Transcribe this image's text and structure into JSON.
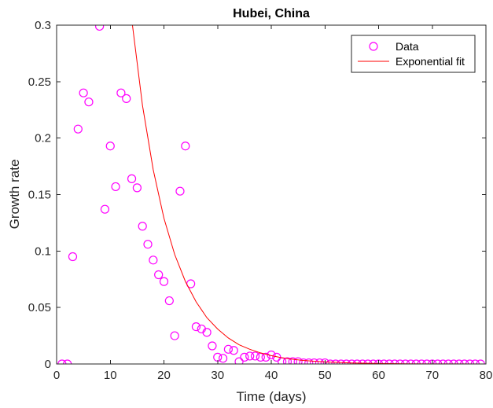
{
  "chart_data": {
    "type": "scatter",
    "title": "Hubei, China",
    "xlabel": "Time (days)",
    "ylabel": "Growth rate",
    "xlim": [
      0,
      80
    ],
    "ylim": [
      0,
      0.3
    ],
    "x_ticks": [
      0,
      10,
      20,
      30,
      40,
      50,
      60,
      70,
      80
    ],
    "x_tick_labels": [
      "0",
      "10",
      "20",
      "30",
      "40",
      "50",
      "60",
      "70",
      "80"
    ],
    "y_ticks": [
      0,
      0.05,
      0.1,
      0.15,
      0.2,
      0.25,
      0.3
    ],
    "y_tick_labels": [
      "0",
      "0.05",
      "0.1",
      "0.15",
      "0.2",
      "0.25",
      "0.3"
    ],
    "grid": false,
    "legend_position": "top-right",
    "series": [
      {
        "name": "Data",
        "kind": "markers",
        "marker": "circle",
        "color": "#ff00ff",
        "x": [
          1,
          2,
          3,
          4,
          5,
          6,
          7,
          8,
          9,
          10,
          11,
          12,
          13,
          14,
          15,
          16,
          17,
          18,
          19,
          20,
          21,
          22,
          23,
          24,
          25,
          26,
          27,
          28,
          29,
          30,
          31,
          32,
          33,
          34,
          35,
          36,
          37,
          38,
          39,
          40,
          41,
          42,
          43,
          44,
          45,
          46,
          47,
          48,
          49,
          50,
          51,
          52,
          53,
          54,
          55,
          56,
          57,
          58,
          59,
          60,
          61,
          62,
          63,
          64,
          65,
          66,
          67,
          68,
          69,
          70,
          71,
          72,
          73,
          74,
          75,
          76,
          77,
          78,
          79
        ],
        "y": [
          0,
          0,
          0.095,
          0.208,
          0.24,
          0.232,
          0.31,
          0.299,
          0.137,
          0.193,
          0.157,
          0.24,
          0.235,
          0.164,
          0.156,
          0.122,
          0.106,
          0.092,
          0.079,
          0.073,
          0.056,
          0.025,
          0.153,
          0.193,
          0.071,
          0.033,
          0.031,
          0.028,
          0.016,
          0.006,
          0.005,
          0.013,
          0.012,
          0.002,
          0.006,
          0.007,
          0.007,
          0.006,
          0.006,
          0.008,
          0.006,
          0.002,
          0.002,
          0.002,
          0.002,
          0.001,
          0.001,
          0.001,
          0.001,
          0.001,
          0,
          0,
          0,
          0,
          0,
          0,
          0,
          0,
          0,
          0,
          0,
          0,
          0,
          0,
          0,
          0,
          0,
          0,
          0,
          0,
          0,
          0,
          0,
          0,
          0,
          0,
          0,
          0,
          0
        ]
      },
      {
        "name": "Exponential fit",
        "kind": "line",
        "color": "#ff0000",
        "x": [
          14,
          16,
          18,
          20,
          22,
          24,
          26,
          28,
          30,
          32,
          34,
          36,
          38,
          40,
          42,
          44,
          46,
          48,
          50,
          55,
          60,
          65,
          70,
          75,
          80
        ],
        "y": [
          0.305,
          0.229,
          0.172,
          0.129,
          0.097,
          0.073,
          0.055,
          0.041,
          0.031,
          0.023,
          0.017,
          0.013,
          0.0098,
          0.0074,
          0.0055,
          0.0042,
          0.0031,
          0.0024,
          0.0018,
          0.0009,
          0.0004,
          0.0002,
          0.0001,
          5e-05,
          2e-05
        ]
      }
    ]
  }
}
